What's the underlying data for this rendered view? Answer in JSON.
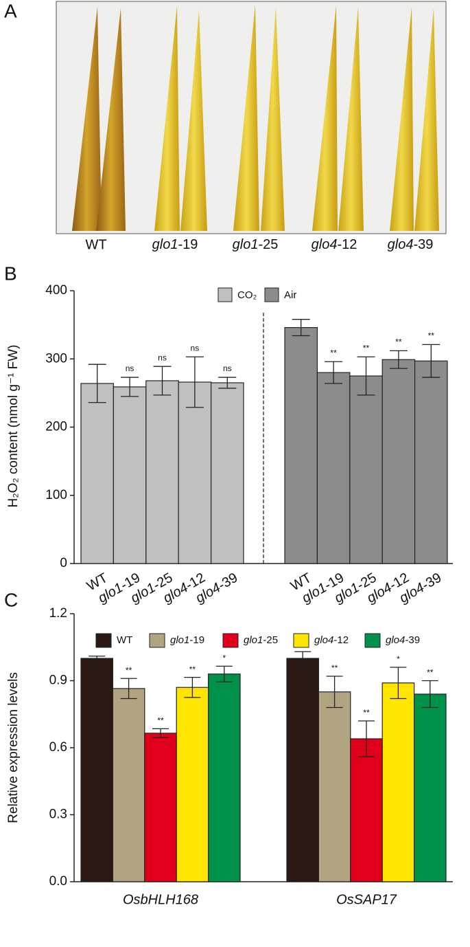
{
  "panel_a": {
    "letter": "A",
    "categories": [
      "WT",
      "glo1-19",
      "glo1-25",
      "glo4-12",
      "glo4-39"
    ]
  },
  "chart_data": [
    {
      "type": "bar",
      "letter": "B",
      "y_label": "H₂O₂ content (nmol g⁻¹ FW)",
      "categories": [
        "WT",
        "glo1-19",
        "glo1-25",
        "glo4-12",
        "glo4-39"
      ],
      "series": [
        {
          "name": "CO₂",
          "color": "#c0c0c2",
          "values": [
            264,
            259,
            268,
            266,
            265
          ],
          "errors": [
            28,
            14,
            21,
            37,
            8
          ],
          "annotations": [
            "ns",
            "ns",
            "ns",
            "ns"
          ]
        },
        {
          "name": "Air",
          "color": "#8c8c8c",
          "values": [
            346,
            280,
            275,
            299,
            297
          ],
          "errors": [
            12,
            16,
            28,
            13,
            24
          ],
          "annotations": [
            "**",
            "**",
            "**",
            "**"
          ]
        }
      ],
      "ylim": [
        0,
        400
      ],
      "yticks": [
        0,
        100,
        200,
        300,
        400
      ],
      "separator": "dashed"
    },
    {
      "type": "grouped_bar",
      "letter": "C",
      "y_label": "Relative expression levels",
      "categories": [
        "OsbHLH168",
        "OsSAP17"
      ],
      "series": [
        {
          "name": "WT",
          "color": "#2b1a14",
          "values": [
            1.0,
            1.0
          ],
          "errors": [
            0.01,
            0.03
          ],
          "annotations": [
            null,
            null
          ]
        },
        {
          "name": "glo1-19",
          "color": "#b0a580",
          "values": [
            0.865,
            0.85
          ],
          "errors": [
            0.045,
            0.07
          ],
          "annotations": [
            "**",
            "**"
          ]
        },
        {
          "name": "glo1-25",
          "color": "#e0001b",
          "values": [
            0.665,
            0.64
          ],
          "errors": [
            0.02,
            0.08
          ],
          "annotations": [
            "**",
            "**"
          ]
        },
        {
          "name": "glo4-12",
          "color": "#ffe500",
          "values": [
            0.87,
            0.89
          ],
          "errors": [
            0.045,
            0.07
          ],
          "annotations": [
            "**",
            "*"
          ]
        },
        {
          "name": "glo4-39",
          "color": "#00914a",
          "values": [
            0.93,
            0.84
          ],
          "errors": [
            0.035,
            0.06
          ],
          "annotations": [
            "*",
            "**"
          ]
        }
      ],
      "ylim": [
        0,
        1.2
      ],
      "yticks": [
        {
          "value": 0,
          "label": "0.0"
        },
        0.3,
        0.6,
        0.9,
        1.2
      ]
    }
  ]
}
